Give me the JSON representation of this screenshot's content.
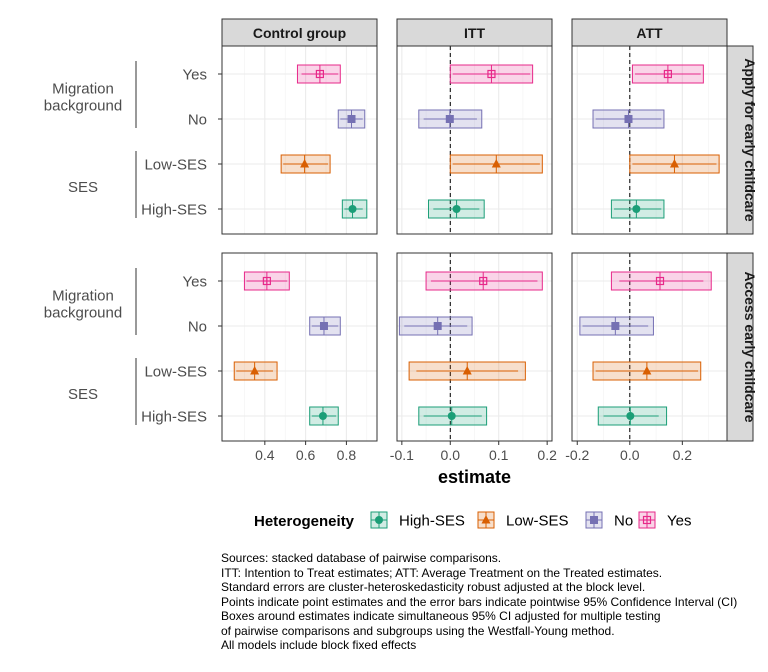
{
  "chart_data": {
    "type": "forest",
    "xlabel": "estimate",
    "legend": {
      "title": "Heterogeneity",
      "placement": "bottom",
      "items": [
        {
          "label": "High-SES",
          "color": "#1b9e77",
          "shape": "circle"
        },
        {
          "label": "Low-SES",
          "color": "#d95f02",
          "shape": "triangle"
        },
        {
          "label": "No",
          "color": "#7570b3",
          "shape": "square"
        },
        {
          "label": "Yes",
          "color": "#e7298a",
          "shape": "square-plus"
        }
      ]
    },
    "columns": [
      {
        "label": "Control group",
        "xlim": [
          0.19,
          0.95
        ],
        "ticks": [
          0.4,
          0.6,
          0.8
        ],
        "tick_labels": [
          "0.4",
          "0.6",
          "0.8"
        ],
        "ref_line": null
      },
      {
        "label": "ITT",
        "xlim": [
          -0.11,
          0.21
        ],
        "ticks": [
          -0.1,
          0.0,
          0.1,
          0.2
        ],
        "tick_labels": [
          "-0.1",
          "0.0",
          "0.1",
          "0.2"
        ],
        "ref_line": 0
      },
      {
        "label": "ATT",
        "xlim": [
          -0.22,
          0.37
        ],
        "ticks": [
          -0.2,
          0.0,
          0.2
        ],
        "tick_labels": [
          "-0.2",
          "0.0",
          "0.2"
        ],
        "ref_line": 0
      }
    ],
    "rows": [
      {
        "label": "Apply for early childcare"
      },
      {
        "label": "Access early childcare"
      }
    ],
    "groups": [
      {
        "label": "Migration background",
        "label_lines": [
          "Migration",
          "background"
        ],
        "levels": [
          "Yes",
          "No"
        ]
      },
      {
        "label": "SES",
        "label_lines": [
          "SES"
        ],
        "levels": [
          "Low-SES",
          "High-SES"
        ]
      }
    ],
    "y_levels": [
      "Yes",
      "No",
      "Low-SES",
      "High-SES"
    ],
    "series": [
      {
        "name": "Yes",
        "color": "#e7298a",
        "shape": "square-plus",
        "estimates": [
          [
            {
              "est": 0.67,
              "ci": [
                0.58,
                0.76
              ],
              "box": [
                0.56,
                0.77
              ]
            },
            {
              "est": 0.085,
              "ci": [
                0.005,
                0.165
              ],
              "box": [
                0.0,
                0.17
              ]
            },
            {
              "est": 0.145,
              "ci": [
                0.02,
                0.27
              ],
              "box": [
                0.01,
                0.28
              ]
            }
          ],
          [
            {
              "est": 0.41,
              "ci": [
                0.31,
                0.51
              ],
              "box": [
                0.3,
                0.52
              ]
            },
            {
              "est": 0.068,
              "ci": [
                -0.04,
                0.18
              ],
              "box": [
                -0.05,
                0.19
              ]
            },
            {
              "est": 0.115,
              "ci": [
                -0.04,
                0.28
              ],
              "box": [
                -0.07,
                0.31
              ]
            }
          ]
        ]
      },
      {
        "name": "No",
        "color": "#7570b3",
        "shape": "square",
        "estimates": [
          [
            {
              "est": 0.825,
              "ci": [
                0.77,
                0.88
              ],
              "box": [
                0.76,
                0.89
              ]
            },
            {
              "est": -0.001,
              "ci": [
                -0.055,
                0.055
              ],
              "box": [
                -0.065,
                0.065
              ]
            },
            {
              "est": -0.005,
              "ci": [
                -0.13,
                0.12
              ],
              "box": [
                -0.14,
                0.13
              ]
            }
          ],
          [
            {
              "est": 0.69,
              "ci": [
                0.63,
                0.76
              ],
              "box": [
                0.62,
                0.77
              ]
            },
            {
              "est": -0.026,
              "ci": [
                -0.095,
                0.035
              ],
              "box": [
                -0.105,
                0.045
              ]
            },
            {
              "est": -0.055,
              "ci": [
                -0.18,
                0.07
              ],
              "box": [
                -0.19,
                0.09
              ]
            }
          ]
        ]
      },
      {
        "name": "Low-SES",
        "color": "#d95f02",
        "shape": "triangle",
        "estimates": [
          [
            {
              "est": 0.595,
              "ci": [
                0.49,
                0.71
              ],
              "box": [
                0.48,
                0.72
              ]
            },
            {
              "est": 0.095,
              "ci": [
                0.005,
                0.185
              ],
              "box": [
                0.0,
                0.19
              ]
            },
            {
              "est": 0.17,
              "ci": [
                0.01,
                0.33
              ],
              "box": [
                0.0,
                0.34
              ]
            }
          ],
          [
            {
              "est": 0.35,
              "ci": [
                0.26,
                0.44
              ],
              "box": [
                0.25,
                0.46
              ]
            },
            {
              "est": 0.035,
              "ci": [
                -0.07,
                0.14
              ],
              "box": [
                -0.085,
                0.155
              ]
            },
            {
              "est": 0.065,
              "ci": [
                -0.13,
                0.26
              ],
              "box": [
                -0.14,
                0.27
              ]
            }
          ]
        ]
      },
      {
        "name": "High-SES",
        "color": "#1b9e77",
        "shape": "circle",
        "estimates": [
          [
            {
              "est": 0.83,
              "ci": [
                0.79,
                0.88
              ],
              "box": [
                0.78,
                0.9
              ]
            },
            {
              "est": 0.013,
              "ci": [
                -0.035,
                0.06
              ],
              "box": [
                -0.045,
                0.07
              ]
            },
            {
              "est": 0.025,
              "ci": [
                -0.06,
                0.12
              ],
              "box": [
                -0.07,
                0.13
              ]
            }
          ],
          [
            {
              "est": 0.685,
              "ci": [
                0.63,
                0.75
              ],
              "box": [
                0.62,
                0.76
              ]
            },
            {
              "est": 0.003,
              "ci": [
                -0.055,
                0.065
              ],
              "box": [
                -0.065,
                0.075
              ]
            },
            {
              "est": 0.002,
              "ci": [
                -0.1,
                0.11
              ],
              "box": [
                -0.12,
                0.14
              ]
            }
          ]
        ]
      }
    ]
  },
  "caption": [
    "Sources: stacked database of pairwise comparisons.",
    "ITT: Intention to Treat estimates; ATT: Average Treatment on the Treated estimates.",
    "Standard errors are cluster-heteroskedasticity robust adjusted at the block level.",
    "Points indicate point estimates and the error bars indicate pointwise 95% Confidence Interval (CI)",
    "Boxes around estimates indicate simultaneous 95% CI adjusted for multiple testing",
    "of pairwise comparisons and subgroups using the Westfall-Young method.",
    "All models include block fixed effects"
  ]
}
